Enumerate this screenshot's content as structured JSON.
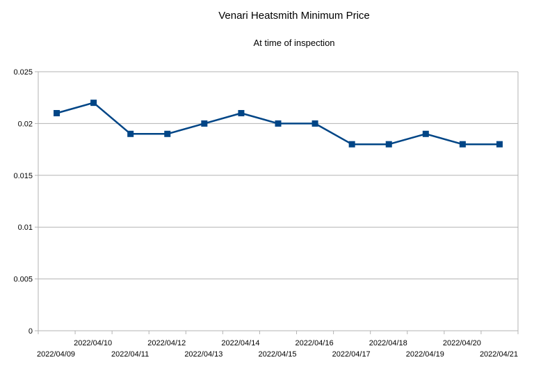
{
  "chart_data": {
    "type": "line",
    "title": "Venari Heatsmith Minimum Price",
    "subtitle": "At time of inspection",
    "xlabel": "",
    "ylabel": "",
    "categories": [
      "2022/04/09",
      "2022/04/10",
      "2022/04/11",
      "2022/04/12",
      "2022/04/13",
      "2022/04/14",
      "2022/04/15",
      "2022/04/16",
      "2022/04/17",
      "2022/04/18",
      "2022/04/19",
      "2022/04/20",
      "2022/04/21"
    ],
    "series": [
      {
        "values": [
          0.021,
          0.022,
          0.019,
          0.019,
          0.02,
          0.021,
          0.02,
          0.02,
          0.018,
          0.018,
          0.019,
          0.018,
          0.018
        ]
      }
    ],
    "yticks": [
      "0",
      "0.005",
      "0.01",
      "0.015",
      "0.02",
      "0.025"
    ],
    "ylim": [
      0,
      0.025
    ],
    "grid": "horizontal",
    "legend": "none",
    "colors": {
      "series": "#004586",
      "grid": "#b3b3b3",
      "axis": "#b3b3b3"
    }
  }
}
